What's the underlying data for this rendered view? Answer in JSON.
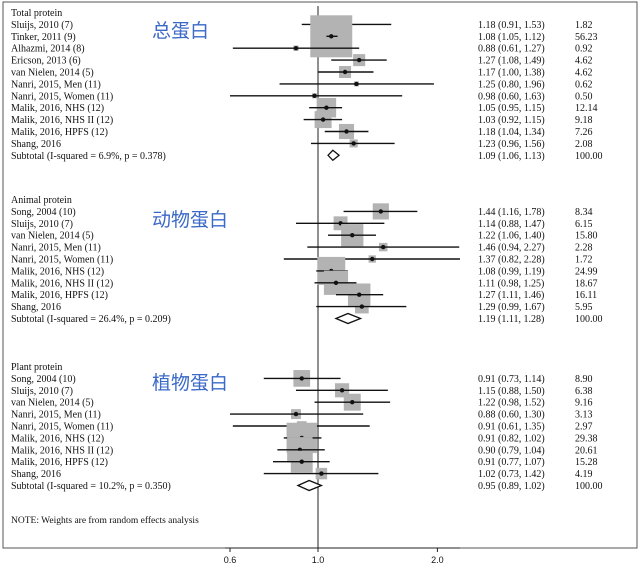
{
  "chart_data": {
    "type": "forest",
    "xlim": [
      0.5,
      2.6
    ],
    "xticks": [
      "0.6",
      "1.0",
      "2.0"
    ],
    "null_line": 1.0,
    "note": "NOTE: Weights are from random effects analysis",
    "groups": [
      {
        "label": "Total protein",
        "annotation": "总蛋白",
        "studies": [
          {
            "label": "Sluijs, 2010 (7)",
            "es": 1.18,
            "lo": 0.91,
            "hi": 1.53,
            "ci_text": "1.18 (0.91, 1.53)",
            "weight": "1.82"
          },
          {
            "label": "Tinker, 2011 (9)",
            "es": 1.08,
            "lo": 1.05,
            "hi": 1.12,
            "ci_text": "1.08 (1.05, 1.12)",
            "weight": "56.23"
          },
          {
            "label": "Alhazmi, 2014 (8)",
            "es": 0.88,
            "lo": 0.61,
            "hi": 1.27,
            "ci_text": "0.88 (0.61, 1.27)",
            "weight": "0.92"
          },
          {
            "label": "Ericson, 2013 (6)",
            "es": 1.27,
            "lo": 1.08,
            "hi": 1.49,
            "ci_text": "1.27 (1.08, 1.49)",
            "weight": "4.62"
          },
          {
            "label": "van Nielen, 2014 (5)",
            "es": 1.17,
            "lo": 1.0,
            "hi": 1.38,
            "ci_text": "1.17 (1.00, 1.38)",
            "weight": "4.62"
          },
          {
            "label": "Nanri, 2015, Men (11)",
            "es": 1.25,
            "lo": 0.8,
            "hi": 1.96,
            "ci_text": "1.25 (0.80, 1.96)",
            "weight": "0.62"
          },
          {
            "label": "Nanri, 2015, Women (11)",
            "es": 0.98,
            "lo": 0.6,
            "hi": 1.63,
            "ci_text": "0.98 (0.60, 1.63)",
            "weight": "0.50"
          },
          {
            "label": "Malik, 2016, NHS (12)",
            "es": 1.05,
            "lo": 0.95,
            "hi": 1.15,
            "ci_text": "1.05 (0.95, 1.15)",
            "weight": "12.14"
          },
          {
            "label": "Malik, 2016, NHS II (12)",
            "es": 1.03,
            "lo": 0.92,
            "hi": 1.15,
            "ci_text": "1.03 (0.92, 1.15)",
            "weight": "9.18"
          },
          {
            "label": "Malik, 2016, HPFS (12)",
            "es": 1.18,
            "lo": 1.04,
            "hi": 1.34,
            "ci_text": "1.18 (1.04, 1.34)",
            "weight": "7.26"
          },
          {
            "label": "Shang, 2016",
            "es": 1.23,
            "lo": 0.96,
            "hi": 1.56,
            "ci_text": "1.23 (0.96, 1.56)",
            "weight": "2.08"
          }
        ],
        "subtotal": {
          "label": "Subtotal  (I-squared = 6.9%, p = 0.378)",
          "es": 1.09,
          "lo": 1.06,
          "hi": 1.13,
          "ci_text": "1.09 (1.06, 1.13)",
          "weight": "100.00"
        }
      },
      {
        "label": "Animal protein",
        "annotation": "动物蛋白",
        "studies": [
          {
            "label": "Song, 2004 (10)",
            "es": 1.44,
            "lo": 1.16,
            "hi": 1.78,
            "ci_text": "1.44 (1.16, 1.78)",
            "weight": "8.34"
          },
          {
            "label": "Sluijs, 2010 (7)",
            "es": 1.14,
            "lo": 0.88,
            "hi": 1.47,
            "ci_text": "1.14 (0.88, 1.47)",
            "weight": "6.15"
          },
          {
            "label": "van Nielen, 2014 (5)",
            "es": 1.22,
            "lo": 1.06,
            "hi": 1.4,
            "ci_text": "1.22 (1.06, 1.40)",
            "weight": "15.80"
          },
          {
            "label": "Nanri, 2015, Men (11)",
            "es": 1.46,
            "lo": 0.94,
            "hi": 2.27,
            "ci_text": "1.46 (0.94, 2.27)",
            "weight": "2.28"
          },
          {
            "label": "Nanri, 2015, Women (11)",
            "es": 1.37,
            "lo": 0.82,
            "hi": 2.28,
            "ci_text": "1.37 (0.82, 2.28)",
            "weight": "1.72"
          },
          {
            "label": "Malik, 2016, NHS (12)",
            "es": 1.08,
            "lo": 0.99,
            "hi": 1.19,
            "ci_text": "1.08 (0.99, 1.19)",
            "weight": "24.99"
          },
          {
            "label": "Malik, 2016, NHS II (12)",
            "es": 1.11,
            "lo": 0.98,
            "hi": 1.25,
            "ci_text": "1.11 (0.98, 1.25)",
            "weight": "18.67"
          },
          {
            "label": "Malik, 2016, HPFS (12)",
            "es": 1.27,
            "lo": 1.11,
            "hi": 1.46,
            "ci_text": "1.27 (1.11, 1.46)",
            "weight": "16.11"
          },
          {
            "label": "Shang, 2016",
            "es": 1.29,
            "lo": 0.99,
            "hi": 1.67,
            "ci_text": "1.29 (0.99, 1.67)",
            "weight": "5.95"
          }
        ],
        "subtotal": {
          "label": "Subtotal  (I-squared = 26.4%, p = 0.209)",
          "es": 1.19,
          "lo": 1.11,
          "hi": 1.28,
          "ci_text": "1.19 (1.11, 1.28)",
          "weight": "100.00"
        }
      },
      {
        "label": "Plant protein",
        "annotation": "植物蛋白",
        "studies": [
          {
            "label": "Song, 2004 (10)",
            "es": 0.91,
            "lo": 0.73,
            "hi": 1.14,
            "ci_text": "0.91 (0.73, 1.14)",
            "weight": "8.90"
          },
          {
            "label": "Sluijs, 2010 (7)",
            "es": 1.15,
            "lo": 0.88,
            "hi": 1.5,
            "ci_text": "1.15 (0.88, 1.50)",
            "weight": "6.38"
          },
          {
            "label": "van Nielen, 2014 (5)",
            "es": 1.22,
            "lo": 0.98,
            "hi": 1.52,
            "ci_text": "1.22 (0.98, 1.52)",
            "weight": "9.16"
          },
          {
            "label": "Nanri, 2015, Men (11)",
            "es": 0.88,
            "lo": 0.6,
            "hi": 1.3,
            "ci_text": "0.88 (0.60, 1.30)",
            "weight": "3.13"
          },
          {
            "label": "Nanri, 2015, Women (11)",
            "es": 0.91,
            "lo": 0.61,
            "hi": 1.35,
            "ci_text": "0.91 (0.61, 1.35)",
            "weight": "2.97"
          },
          {
            "label": "Malik, 2016, NHS (12)",
            "es": 0.91,
            "lo": 0.82,
            "hi": 1.02,
            "ci_text": "0.91 (0.82, 1.02)",
            "weight": "29.38"
          },
          {
            "label": "Malik, 2016, NHS II (12)",
            "es": 0.9,
            "lo": 0.79,
            "hi": 1.04,
            "ci_text": "0.90 (0.79, 1.04)",
            "weight": "20.61"
          },
          {
            "label": "Malik, 2016, HPFS (12)",
            "es": 0.91,
            "lo": 0.77,
            "hi": 1.07,
            "ci_text": "0.91 (0.77, 1.07)",
            "weight": "15.28"
          },
          {
            "label": "Shang, 2016",
            "es": 1.02,
            "lo": 0.73,
            "hi": 1.42,
            "ci_text": "1.02 (0.73, 1.42)",
            "weight": "4.19"
          }
        ],
        "subtotal": {
          "label": "Subtotal  (I-squared = 10.2%, p = 0.350)",
          "es": 0.95,
          "lo": 0.89,
          "hi": 1.02,
          "ci_text": "0.95 (0.89, 1.02)",
          "weight": "100.00"
        }
      }
    ]
  }
}
